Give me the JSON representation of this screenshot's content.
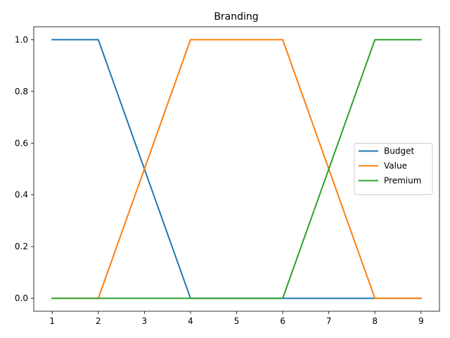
{
  "chart_data": {
    "type": "line",
    "title": "Branding",
    "xlabel": "",
    "ylabel": "",
    "x": [
      1,
      2,
      3,
      4,
      5,
      6,
      7,
      8,
      9
    ],
    "xlim": [
      0.6,
      9.4
    ],
    "ylim": [
      -0.05,
      1.05
    ],
    "xticks": [
      1,
      2,
      3,
      4,
      5,
      6,
      7,
      8,
      9
    ],
    "yticks": [
      0.0,
      0.2,
      0.4,
      0.6,
      0.8,
      1.0
    ],
    "ytick_labels": [
      "0.0",
      "0.2",
      "0.4",
      "0.6",
      "0.8",
      "1.0"
    ],
    "grid": false,
    "legend_position": "center-right",
    "series": [
      {
        "name": "Budget",
        "color": "#1f77b4",
        "values": [
          1,
          1,
          0.5,
          0,
          0,
          0,
          0,
          0,
          0
        ]
      },
      {
        "name": "Value",
        "color": "#ff7f0e",
        "values": [
          0,
          0,
          0.5,
          1,
          1,
          1,
          0.5,
          0,
          0
        ]
      },
      {
        "name": "Premium",
        "color": "#2ca02c",
        "values": [
          0,
          0,
          0,
          0,
          0,
          0,
          0.5,
          1,
          1
        ]
      }
    ]
  }
}
